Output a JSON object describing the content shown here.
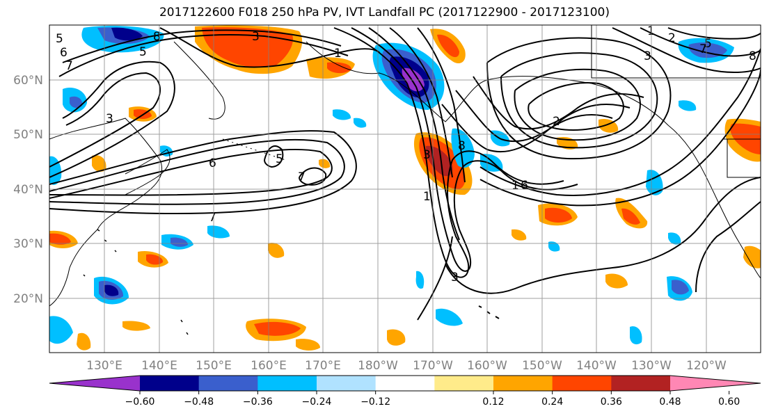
{
  "title": "2017122600 F018 250 hPa PV, IVT Landfall PC (2017122900 - 2017123100)",
  "lat_labels": [
    "60°N",
    "50°N",
    "40°N",
    "30°N",
    "20°N"
  ],
  "lon_labels": [
    "130°E",
    "140°E",
    "150°E",
    "160°E",
    "170°E",
    "180°W",
    "170°W",
    "160°W",
    "150°W",
    "140°W",
    "130°W",
    "120°W"
  ],
  "colorbar": {
    "ticks": [
      "−0.60",
      "−0.48",
      "−0.36",
      "−0.24",
      "−0.12",
      "0.12",
      "0.24",
      "0.36",
      "0.48",
      "0.60"
    ],
    "colors": [
      "#9932cc",
      "#00008b",
      "#3a5fcd",
      "#00bfff",
      "#b0e2ff",
      "#ffffff",
      "#ffeb8a",
      "#ffa500",
      "#ff4500",
      "#b22222",
      "#ff87b4"
    ]
  },
  "contour_labels": [
    "5",
    "6",
    "7",
    "8",
    "3",
    "5",
    "3",
    "6",
    "5",
    "7",
    "7",
    "1",
    "3",
    "8",
    "2",
    "1",
    "2",
    "1",
    "3",
    "8",
    "5",
    "6",
    "7",
    "1",
    "3"
  ],
  "colors": {
    "pv_contour": "#000000",
    "grid": "#808080",
    "coast": "#000000"
  }
}
